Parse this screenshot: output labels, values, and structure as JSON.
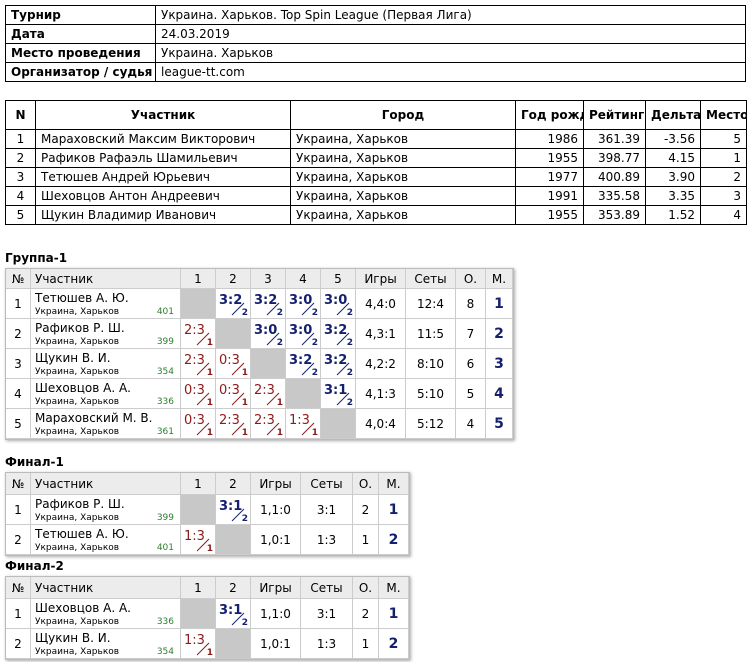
{
  "info": [
    {
      "label": "Турнир",
      "value": "Украина. Харьков. Top Spin League (Первая Лига)"
    },
    {
      "label": "Дата",
      "value": "24.03.2019"
    },
    {
      "label": "Место проведения",
      "value": "Украина. Харьков"
    },
    {
      "label": "Организатор / судья",
      "value": "league-tt.com"
    }
  ],
  "participants": {
    "header": [
      "N",
      "Участник",
      "Город",
      "Год рожд.",
      "Рейтинг",
      "Дельта",
      "Место"
    ],
    "rows": [
      [
        "1",
        "Мараховский Максим Викторович",
        "Украина, Харьков",
        "1986",
        "361.39",
        "-3.56",
        "5"
      ],
      [
        "2",
        "Рафиков Рафаэль Шамильевич",
        "Украина, Харьков",
        "1955",
        "398.77",
        "4.15",
        "1"
      ],
      [
        "3",
        "Тетюшев Андрей Юрьевич",
        "Украина, Харьков",
        "1977",
        "400.89",
        "3.90",
        "2"
      ],
      [
        "4",
        "Шеховцов Антон Андреевич",
        "Украина, Харьков",
        "1991",
        "335.58",
        "3.35",
        "3"
      ],
      [
        "5",
        "Щукин Владимир Иванович",
        "Украина, Харьков",
        "1955",
        "353.89",
        "1.52",
        "4"
      ]
    ]
  },
  "groups": [
    {
      "title": "Группа-1",
      "header": [
        "№",
        "Участник",
        "1",
        "2",
        "3",
        "4",
        "5",
        "Игры",
        "Сеты",
        "О.",
        "М."
      ],
      "rows": [
        {
          "n": "1",
          "name": "Тетюшев А. Ю.",
          "city": "Украина, Харьков",
          "rating": "401",
          "results": [
            null,
            {
              "score": "3:2",
              "points": "2"
            },
            {
              "score": "3:2",
              "points": "2"
            },
            {
              "score": "3:0",
              "points": "2"
            },
            {
              "score": "3:0",
              "points": "2"
            }
          ],
          "games": "4,4:0",
          "sets": "12:4",
          "points": "8",
          "place": "1"
        },
        {
          "n": "2",
          "name": "Рафиков Р. Ш.",
          "city": "Украина, Харьков",
          "rating": "399",
          "results": [
            {
              "score": "2:3",
              "points": "1"
            },
            null,
            {
              "score": "3:0",
              "points": "2"
            },
            {
              "score": "3:0",
              "points": "2"
            },
            {
              "score": "3:2",
              "points": "2"
            }
          ],
          "games": "4,3:1",
          "sets": "11:5",
          "points": "7",
          "place": "2"
        },
        {
          "n": "3",
          "name": "Щукин В. И.",
          "city": "Украина, Харьков",
          "rating": "354",
          "results": [
            {
              "score": "2:3",
              "points": "1"
            },
            {
              "score": "0:3",
              "points": "1"
            },
            null,
            {
              "score": "3:2",
              "points": "2"
            },
            {
              "score": "3:2",
              "points": "2"
            }
          ],
          "games": "4,2:2",
          "sets": "8:10",
          "points": "6",
          "place": "3"
        },
        {
          "n": "4",
          "name": "Шеховцов А. А.",
          "city": "Украина, Харьков",
          "rating": "336",
          "results": [
            {
              "score": "0:3",
              "points": "1"
            },
            {
              "score": "0:3",
              "points": "1"
            },
            {
              "score": "2:3",
              "points": "1"
            },
            null,
            {
              "score": "3:1",
              "points": "2"
            }
          ],
          "games": "4,1:3",
          "sets": "5:10",
          "points": "5",
          "place": "4"
        },
        {
          "n": "5",
          "name": "Мараховский М. В.",
          "city": "Украина, Харьков",
          "rating": "361",
          "results": [
            {
              "score": "0:3",
              "points": "1"
            },
            {
              "score": "2:3",
              "points": "1"
            },
            {
              "score": "2:3",
              "points": "1"
            },
            {
              "score": "1:3",
              "points": "1"
            },
            null
          ],
          "games": "4,0:4",
          "sets": "5:12",
          "points": "4",
          "place": "5"
        }
      ]
    },
    {
      "title": "Финал-1",
      "header": [
        "№",
        "Участник",
        "1",
        "2",
        "Игры",
        "Сеты",
        "О.",
        "М."
      ],
      "rows": [
        {
          "n": "1",
          "name": "Рафиков Р. Ш.",
          "city": "Украина, Харьков",
          "rating": "399",
          "results": [
            null,
            {
              "score": "3:1",
              "points": "2"
            }
          ],
          "games": "1,1:0",
          "sets": "3:1",
          "points": "2",
          "place": "1"
        },
        {
          "n": "2",
          "name": "Тетюшев А. Ю.",
          "city": "Украина, Харьков",
          "rating": "401",
          "results": [
            {
              "score": "1:3",
              "points": "1"
            },
            null
          ],
          "games": "1,0:1",
          "sets": "1:3",
          "points": "1",
          "place": "2"
        }
      ]
    },
    {
      "title": "Финал-2",
      "header": [
        "№",
        "Участник",
        "1",
        "2",
        "Игры",
        "Сеты",
        "О.",
        "М."
      ],
      "rows": [
        {
          "n": "1",
          "name": "Шеховцов А. А.",
          "city": "Украина, Харьков",
          "rating": "336",
          "results": [
            null,
            {
              "score": "3:1",
              "points": "2"
            }
          ],
          "games": "1,1:0",
          "sets": "3:1",
          "points": "2",
          "place": "1"
        },
        {
          "n": "2",
          "name": "Щукин В. И.",
          "city": "Украина, Харьков",
          "rating": "354",
          "results": [
            {
              "score": "1:3",
              "points": "1"
            },
            null
          ],
          "games": "1,0:1",
          "sets": "1:3",
          "points": "1",
          "place": "2"
        }
      ]
    }
  ]
}
